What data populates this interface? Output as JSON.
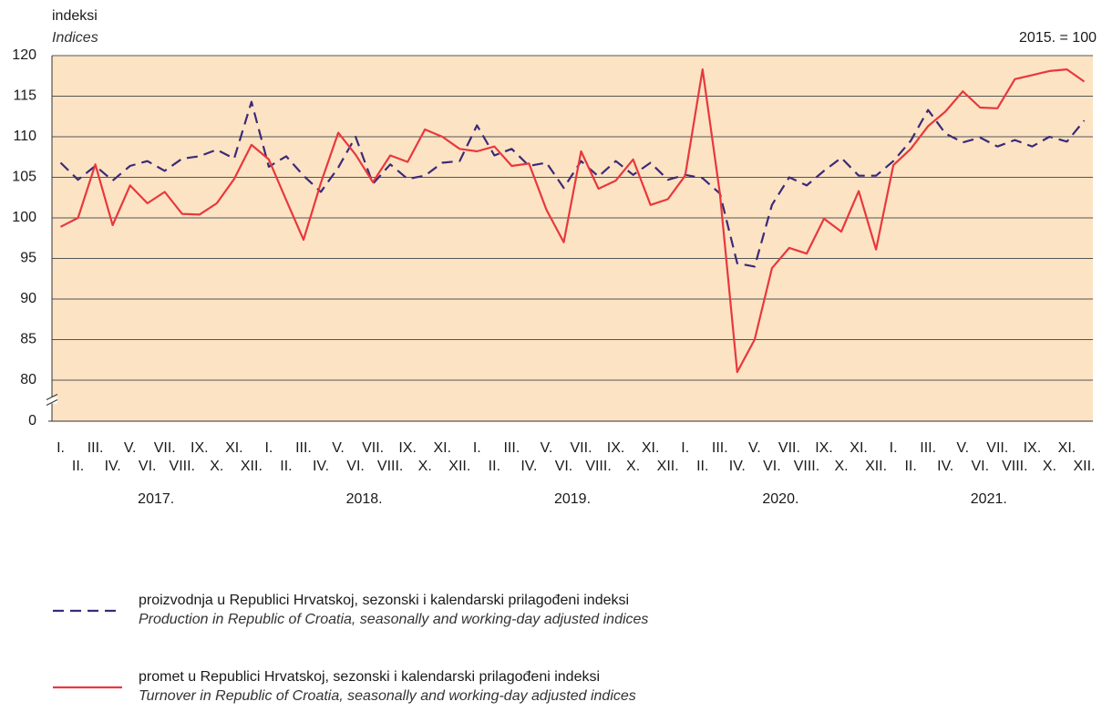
{
  "chart_data": {
    "type": "line",
    "y_label": "indeksi",
    "y_label_en": "Indices",
    "base_note": "2015. = 100",
    "categories": [
      "I.",
      "II.",
      "III.",
      "IV.",
      "V.",
      "VI.",
      "VII.",
      "VIII.",
      "IX.",
      "X.",
      "XI.",
      "XII.",
      "I.",
      "II.",
      "III.",
      "IV.",
      "V.",
      "VI.",
      "VII.",
      "VIII.",
      "IX.",
      "X.",
      "XI.",
      "XII.",
      "I.",
      "II.",
      "III.",
      "IV.",
      "V.",
      "VI.",
      "VII.",
      "VIII.",
      "IX.",
      "X.",
      "XI.",
      "XII.",
      "I.",
      "II.",
      "III.",
      "IV.",
      "V.",
      "VI.",
      "VII.",
      "VIII.",
      "IX.",
      "X.",
      "XI.",
      "XII.",
      "I.",
      "II.",
      "III.",
      "IV.",
      "V.",
      "VI.",
      "VII.",
      "VIII.",
      "IX.",
      "X.",
      "XI.",
      "XII."
    ],
    "years": [
      "2017.",
      "2018.",
      "2019.",
      "2020.",
      "2021."
    ],
    "ylim": [
      80,
      120
    ],
    "yticks": [
      0,
      80,
      85,
      90,
      95,
      100,
      105,
      110,
      115,
      120
    ],
    "axis_break": true,
    "grid": true,
    "background": "#fce3c4",
    "series": [
      {
        "name": "proizvodnja u Republici Hrvatskoj, sezonski i kalendarski prilagođeni indeksi",
        "name_en": "Production in Republic of Croatia, seasonally and working-day adjusted indices",
        "color": "#3b2a78",
        "line_style": "dashed",
        "values": [
          106.8,
          104.7,
          106.4,
          104.6,
          106.4,
          107.0,
          105.8,
          107.3,
          107.6,
          108.4,
          107.3,
          114.3,
          106.3,
          107.6,
          105.2,
          103.2,
          106.2,
          110.0,
          104.2,
          106.6,
          104.8,
          105.2,
          106.8,
          107.0,
          111.4,
          107.7,
          108.5,
          106.4,
          106.8,
          103.7,
          107.0,
          105.1,
          107.0,
          105.3,
          106.8,
          104.7,
          105.3,
          104.9,
          103.0,
          94.4,
          94.0,
          101.6,
          105.0,
          104.0,
          105.8,
          107.4,
          105.2,
          105.2,
          107.0,
          109.5,
          113.3,
          110.4,
          109.3,
          109.9,
          108.8,
          109.6,
          108.8,
          110.0,
          109.4,
          112.0
        ]
      },
      {
        "name": "promet u Republici Hrvatskoj, sezonski i kalendarski prilagođeni indeksi",
        "name_en": "Turnover in Republic of Croatia, seasonally and working-day adjusted indices",
        "color": "#e8383d",
        "line_style": "solid",
        "values": [
          98.9,
          100.0,
          106.6,
          99.1,
          104.0,
          101.8,
          103.2,
          100.5,
          100.4,
          101.8,
          104.8,
          109.0,
          107.2,
          102.2,
          97.3,
          104.3,
          110.5,
          107.8,
          104.4,
          107.7,
          106.9,
          110.9,
          110.0,
          108.5,
          108.2,
          108.8,
          106.4,
          106.7,
          101.0,
          97.0,
          108.2,
          103.6,
          104.6,
          107.2,
          101.6,
          102.3,
          105.2,
          118.3,
          103.0,
          81.0,
          85.0,
          93.8,
          96.3,
          95.6,
          99.9,
          98.3,
          103.3,
          96.1,
          106.5,
          108.5,
          111.3,
          113.1,
          115.6,
          113.6,
          113.5,
          117.1,
          117.6,
          118.1,
          118.3,
          116.8
        ]
      }
    ]
  }
}
